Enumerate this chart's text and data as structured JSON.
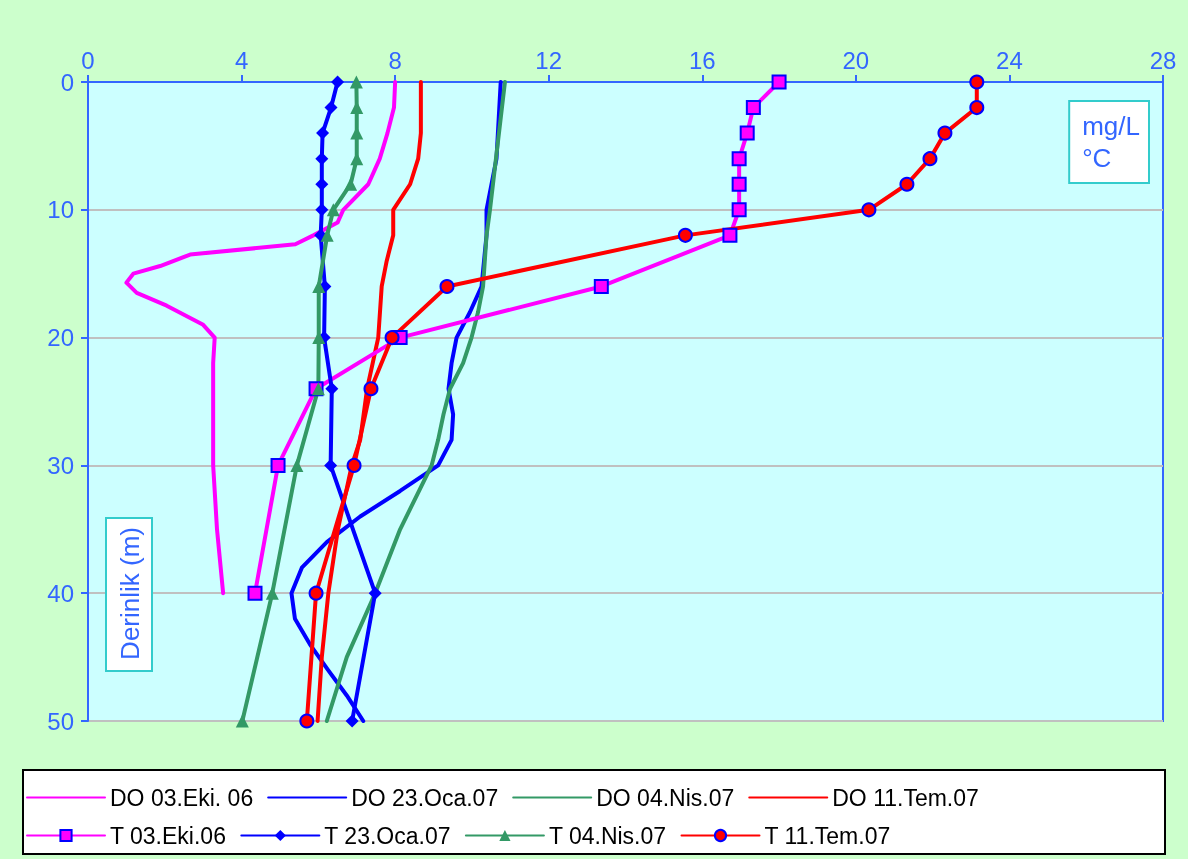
{
  "chart_data": {
    "type": "line",
    "xlabel": "mg/L\n°C",
    "ylabel": "Derinlik (m)",
    "xlim": [
      0,
      28
    ],
    "xticks": [
      0,
      4,
      8,
      12,
      16,
      20,
      24,
      28
    ],
    "ylim": [
      50,
      0
    ],
    "yticks": [
      0,
      10,
      20,
      30,
      40,
      50
    ],
    "grid": "y",
    "legend": "bottom",
    "series": [
      {
        "name": "DO 03.Eki. 06",
        "color": "#ff00ff",
        "marker": "none",
        "x": [
          8.0,
          7.97,
          7.8,
          7.6,
          7.3,
          6.65,
          6.5,
          5.87,
          5.4,
          2.66,
          1.88,
          1.18,
          1.0,
          1.27,
          2.05,
          3.0,
          3.3,
          3.26,
          3.26,
          3.36,
          3.52
        ],
        "values": [
          0,
          2,
          4,
          6,
          8,
          10,
          11,
          12,
          12.7,
          13.5,
          14.4,
          15,
          15.7,
          16.5,
          17.5,
          19,
          20,
          22,
          30,
          35,
          40
        ]
      },
      {
        "name": "DO 23.Oca.07",
        "color": "#0000ff",
        "marker": "none",
        "x": [
          10.75,
          10.64,
          10.38,
          10.38,
          10.25,
          9.95,
          9.6,
          9.47,
          9.39,
          9.51,
          9.47,
          9.12,
          8.13,
          7.09,
          6.22,
          5.57,
          5.3,
          5.39,
          5.78,
          6.25,
          6.74,
          7.17
        ],
        "values": [
          0,
          6,
          10,
          12,
          16,
          18,
          20,
          22,
          24,
          26,
          28,
          30,
          32,
          34,
          36,
          38,
          40,
          42,
          44,
          46,
          48,
          50
        ]
      },
      {
        "name": "DO 04.Nis.07",
        "color": "#339966",
        "marker": "none",
        "x": [
          10.86,
          10.47,
          10.38,
          10.29,
          10.16,
          9.99,
          9.77,
          9.43,
          9.26,
          9.12,
          8.95,
          8.13,
          7.48,
          6.74,
          6.22
        ],
        "values": [
          0,
          10,
          12,
          16,
          18,
          20,
          22,
          24,
          26,
          28,
          30,
          35,
          40,
          45,
          50
        ]
      },
      {
        "name": "DO 11.Tem.07",
        "color": "#ff0000",
        "marker": "none",
        "x": [
          8.67,
          8.67,
          8.6,
          8.39,
          7.95,
          7.95,
          7.78,
          7.65,
          7.56,
          7.27,
          7.09,
          6.87,
          6.51,
          6.26,
          6.09,
          5.98
        ],
        "values": [
          0,
          4,
          6,
          8,
          10,
          12,
          14,
          16,
          20,
          24,
          28,
          30,
          35,
          40,
          45,
          50
        ]
      },
      {
        "name": "T 03.Eki.06",
        "color": "#ff00ff",
        "marker": "square",
        "x": [
          18.0,
          17.33,
          17.17,
          16.96,
          16.96,
          16.96,
          16.72,
          13.37,
          8.13,
          5.94,
          4.95,
          4.35
        ],
        "values": [
          0,
          2,
          4,
          6,
          8,
          10,
          12,
          16,
          20,
          24,
          30,
          40
        ]
      },
      {
        "name": "T 23.Oca.07",
        "color": "#0000ff",
        "marker": "diamond",
        "x": [
          6.5,
          6.33,
          6.11,
          6.09,
          6.09,
          6.09,
          6.06,
          6.17,
          6.15,
          6.35,
          6.32,
          7.48,
          6.88
        ],
        "values": [
          0,
          2,
          4,
          6,
          8,
          10,
          12,
          16,
          20,
          24,
          30,
          40,
          50
        ]
      },
      {
        "name": "T 04.Nis.07",
        "color": "#339966",
        "marker": "triangle",
        "x": [
          6.99,
          7.0,
          7.0,
          7.0,
          6.84,
          6.39,
          6.23,
          6.01,
          6.01,
          6.0,
          5.44,
          4.8,
          4.02
        ],
        "values": [
          0,
          2,
          4,
          6,
          8,
          10,
          12,
          16,
          20,
          24,
          30,
          40,
          50
        ]
      },
      {
        "name": "T 11.Tem.07",
        "color": "#ff0000",
        "marker": "circle",
        "x": [
          23.15,
          23.15,
          22.32,
          21.93,
          21.33,
          20.34,
          15.56,
          9.35,
          7.92,
          7.37,
          6.93,
          5.94,
          5.7
        ],
        "values": [
          0,
          2,
          4,
          6,
          8,
          10,
          12,
          16,
          20,
          24,
          30,
          40,
          50
        ]
      }
    ]
  }
}
